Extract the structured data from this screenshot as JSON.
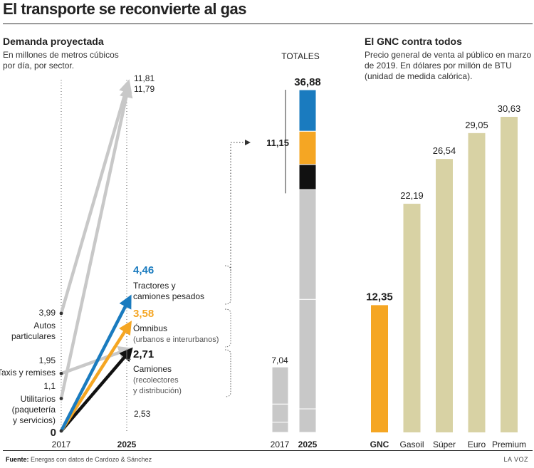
{
  "title": "El transporte se reconvierte al gas",
  "left_panel": {
    "subtitle": "Demanda proyectada",
    "description_line1": "En millones de metros cúbicos",
    "description_line2": "por día, por sector."
  },
  "right_panel": {
    "subtitle": "El GNC contra todos",
    "description_line1": "Precio general de venta al público en marzo",
    "description_line2": "de 2019. En dólares por millón de BTU",
    "description_line3": "(unidad de medida calórica)."
  },
  "footer": {
    "source_label": "Fuente:",
    "source_text": "Energas con datos de Cardozo & Sánchez",
    "credit": "LA VOZ"
  },
  "colors": {
    "tractores": "#1a7bbf",
    "omnibus": "#f5a623",
    "camiones": "#111111",
    "gray": "#c8c8c8",
    "beige": "#d8d2a4",
    "gnc": "#f5a623"
  },
  "chart_data": [
    {
      "type": "line",
      "name": "Demanda proyectada",
      "x": [
        "2017",
        "2025"
      ],
      "y_origin_label": "0",
      "series": [
        {
          "name": "Autos particulares",
          "values": [
            3.99,
            11.81
          ],
          "color": "#c8c8c8",
          "sublabel": ""
        },
        {
          "name": "Taxis y remises",
          "values": [
            1.95,
            2.53
          ],
          "color": "#c8c8c8",
          "sublabel": ""
        },
        {
          "name": "Utilitarios",
          "values": [
            1.1,
            11.79
          ],
          "color": "#c8c8c8",
          "sublabel": "(paquetería y servicios)"
        },
        {
          "name": "Tractores y camiones pesados",
          "values": [
            0,
            4.46
          ],
          "color": "#1a7bbf",
          "sublabel": ""
        },
        {
          "name": "Ómnibus",
          "values": [
            0,
            3.58
          ],
          "color": "#f5a623",
          "sublabel": "(urbanos e interurbanos)"
        },
        {
          "name": "Camiones",
          "values": [
            0,
            2.71
          ],
          "color": "#111111",
          "sublabel": "(recolectores y distribución)"
        }
      ],
      "labels_2017": {
        "autos_value": "3,99",
        "autos_name_1": "Autos",
        "autos_name_2": "particulares",
        "taxis_value": "1,95",
        "taxis_name": "Taxis y remises",
        "util_value": "1,1",
        "util_name": "Utilitarios",
        "util_sub_1": "(paquetería",
        "util_sub_2": "y servicios)"
      },
      "labels_2025": {
        "autos_value": "11,81",
        "util_value": "11,79",
        "taxis_value": "2,53",
        "tractores_value": "4,46",
        "tractores_name_1": "Tractores y",
        "tractores_name_2": "camiones pesados",
        "omnibus_value": "3,58",
        "omnibus_name": "Ómnibus",
        "omnibus_sub": "(urbanos e interurbanos)",
        "camiones_value": "2,71",
        "camiones_name": "Camiones",
        "camiones_sub_1": "(recolectores",
        "camiones_sub_2": "y distribución)"
      }
    },
    {
      "type": "bar",
      "name": "Totales",
      "header": "TOTALES",
      "categories": [
        "2017",
        "2025"
      ],
      "totals": [
        7.04,
        36.88
      ],
      "total_labels": [
        "7,04",
        "36,88"
      ],
      "bracket_value": 11.15,
      "bracket_label": "11,15",
      "stack_2017": [
        1.1,
        1.95,
        3.99
      ],
      "stack_2025": [
        {
          "name": "Taxis y remises",
          "value": 2.53,
          "color": "#c8c8c8"
        },
        {
          "name": "Utilitarios",
          "value": 11.79,
          "color": "#c8c8c8"
        },
        {
          "name": "Autos particulares",
          "value": 11.81,
          "color": "#c8c8c8"
        },
        {
          "name": "Camiones",
          "value": 2.71,
          "color": "#111111"
        },
        {
          "name": "Ómnibus",
          "value": 3.58,
          "color": "#f5a623"
        },
        {
          "name": "Tractores y camiones pesados",
          "value": 4.46,
          "color": "#1a7bbf"
        }
      ]
    },
    {
      "type": "bar",
      "name": "El GNC contra todos",
      "categories": [
        "GNC",
        "Gasoil",
        "Súper",
        "Euro",
        "Premium"
      ],
      "values": [
        12.35,
        22.19,
        26.54,
        29.05,
        30.63
      ],
      "value_labels": [
        "12,35",
        "22,19",
        "26,54",
        "29,05",
        "30,63"
      ],
      "colors": [
        "#f5a623",
        "#d8d2a4",
        "#d8d2a4",
        "#d8d2a4",
        "#d8d2a4"
      ]
    }
  ]
}
